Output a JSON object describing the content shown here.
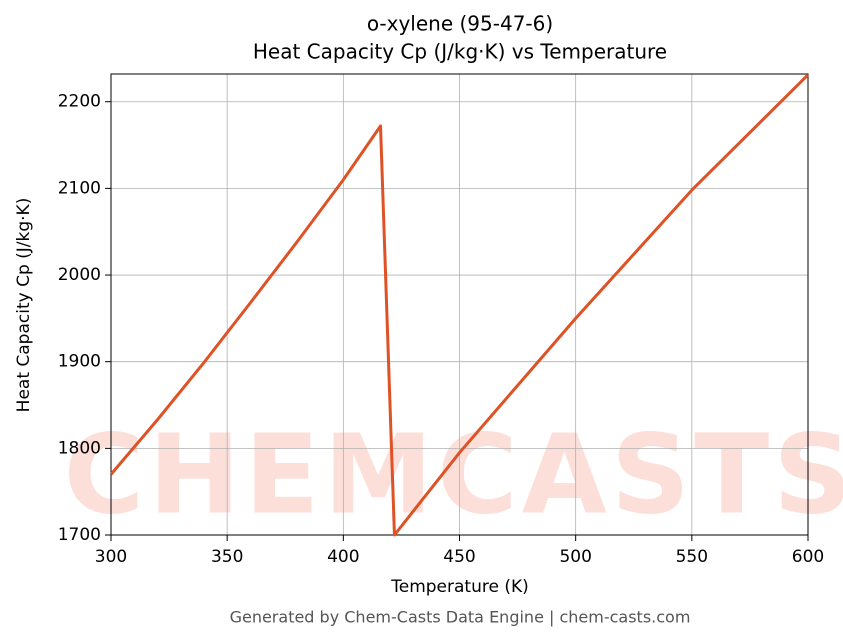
{
  "chart_data": {
    "type": "line",
    "title": "o-xylene (95-47-6)",
    "subtitle": "Heat Capacity Cp (J/kg·K) vs Temperature",
    "x_label": "Temperature (K)",
    "y_label": "Heat Capacity Cp (J/kg·K)",
    "watermark": "CHEMCASTS",
    "footer": "Generated by Chem-Casts Data Engine | chem-casts.com",
    "x": [
      300,
      320,
      340,
      360,
      380,
      400,
      416,
      422,
      450,
      500,
      550,
      600
    ],
    "series": [
      {
        "name": "Cp",
        "color": "#de5225",
        "values": [
          1770,
          1833,
          1899,
          1968,
          2038,
          2110,
          2172,
          1700,
          1795,
          1950,
          2098,
          2231
        ]
      }
    ],
    "xlim": [
      300,
      600
    ],
    "xticks": [
      300,
      350,
      400,
      450,
      500,
      550,
      600
    ],
    "ylim": [
      1700,
      2232
    ],
    "yticks": [
      1700,
      1800,
      1900,
      2000,
      2100,
      2200
    ],
    "grid": true
  }
}
